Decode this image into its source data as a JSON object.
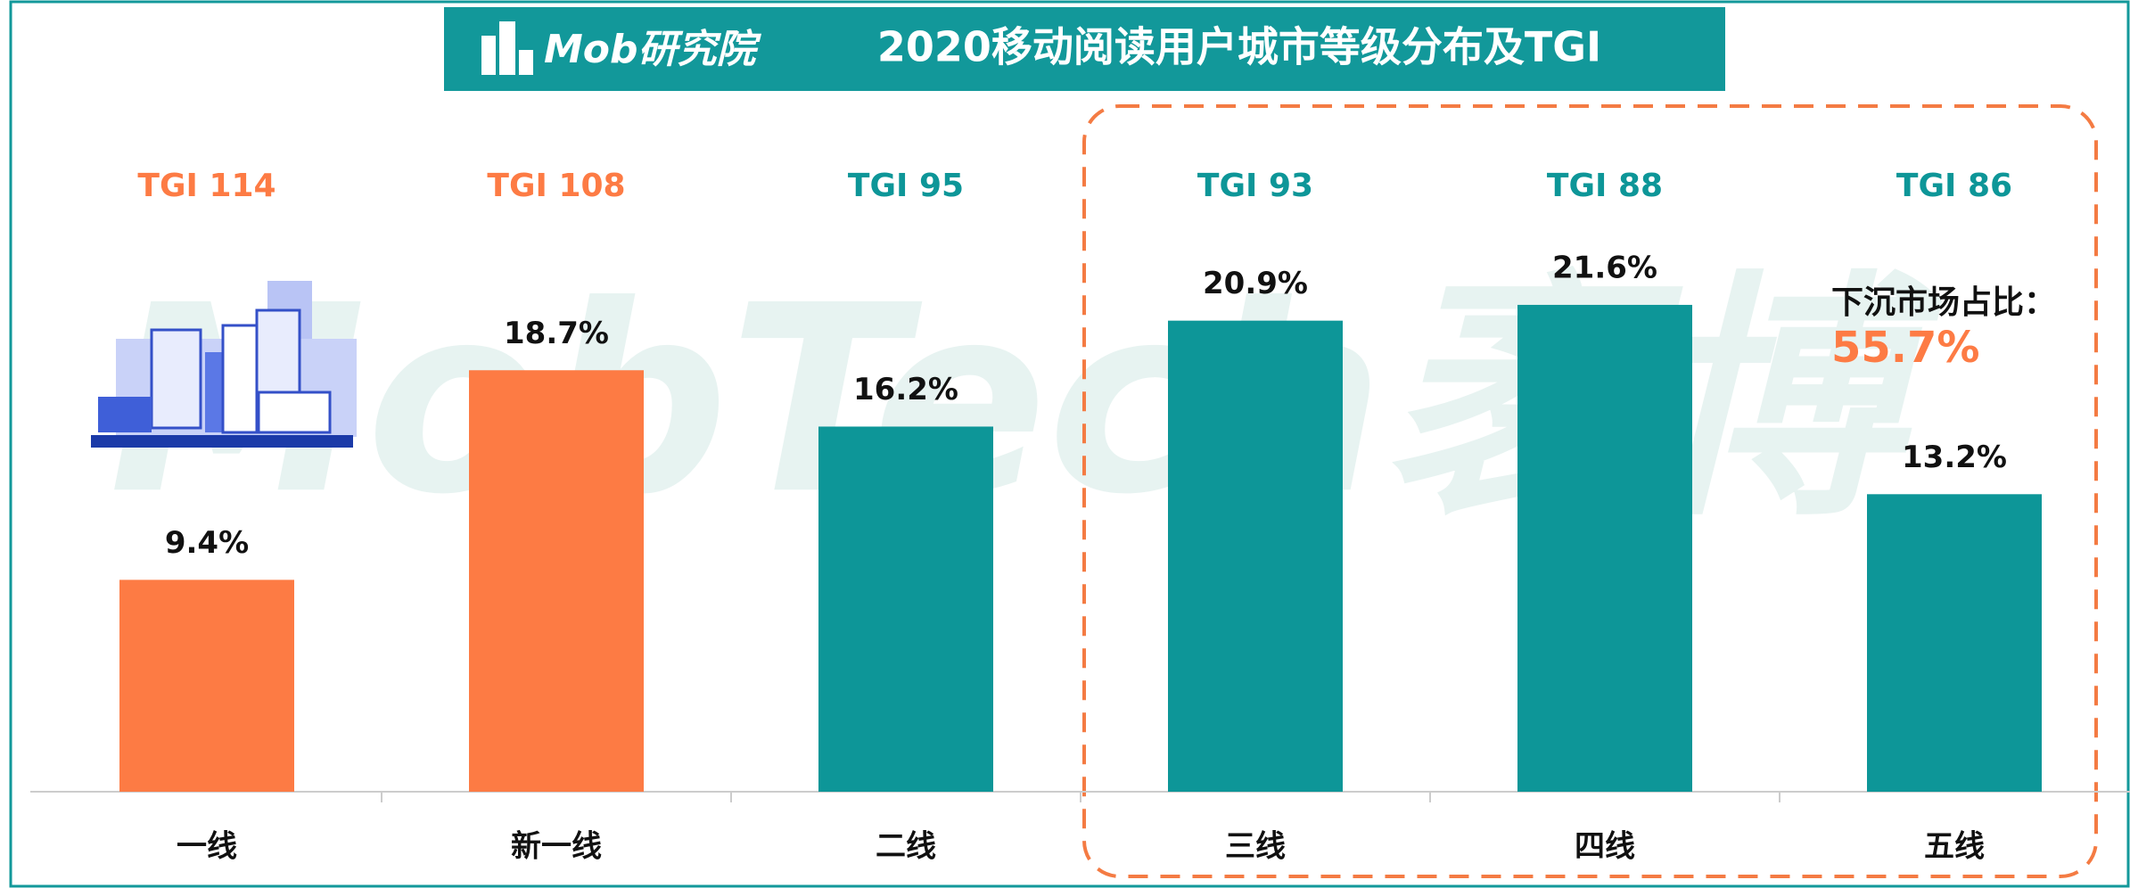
{
  "logo": "Mob研究院",
  "watermark": "MobTech袤博",
  "chart_data": {
    "type": "bar",
    "title": "2020移动阅读用户城市等级分布及TGI",
    "categories": [
      "一线",
      "新一线",
      "二线",
      "三线",
      "四线",
      "五线"
    ],
    "values": [
      9.4,
      18.7,
      16.2,
      20.9,
      21.6,
      13.2
    ],
    "value_labels": [
      "9.4%",
      "18.7%",
      "16.2%",
      "20.9%",
      "21.6%",
      "13.2%"
    ],
    "tgi_labels": [
      "TGI 114",
      "TGI 108",
      "TGI 95",
      "TGI 93",
      "TGI 88",
      "TGI 86"
    ],
    "colors": [
      "#fd7b44",
      "#fd7b44",
      "#0d9698",
      "#0d9698",
      "#0d9698",
      "#0d9698"
    ],
    "ylim": [
      0,
      25
    ],
    "annotation": {
      "text": "下沉市场占比：",
      "value_label": "55.7%"
    }
  }
}
